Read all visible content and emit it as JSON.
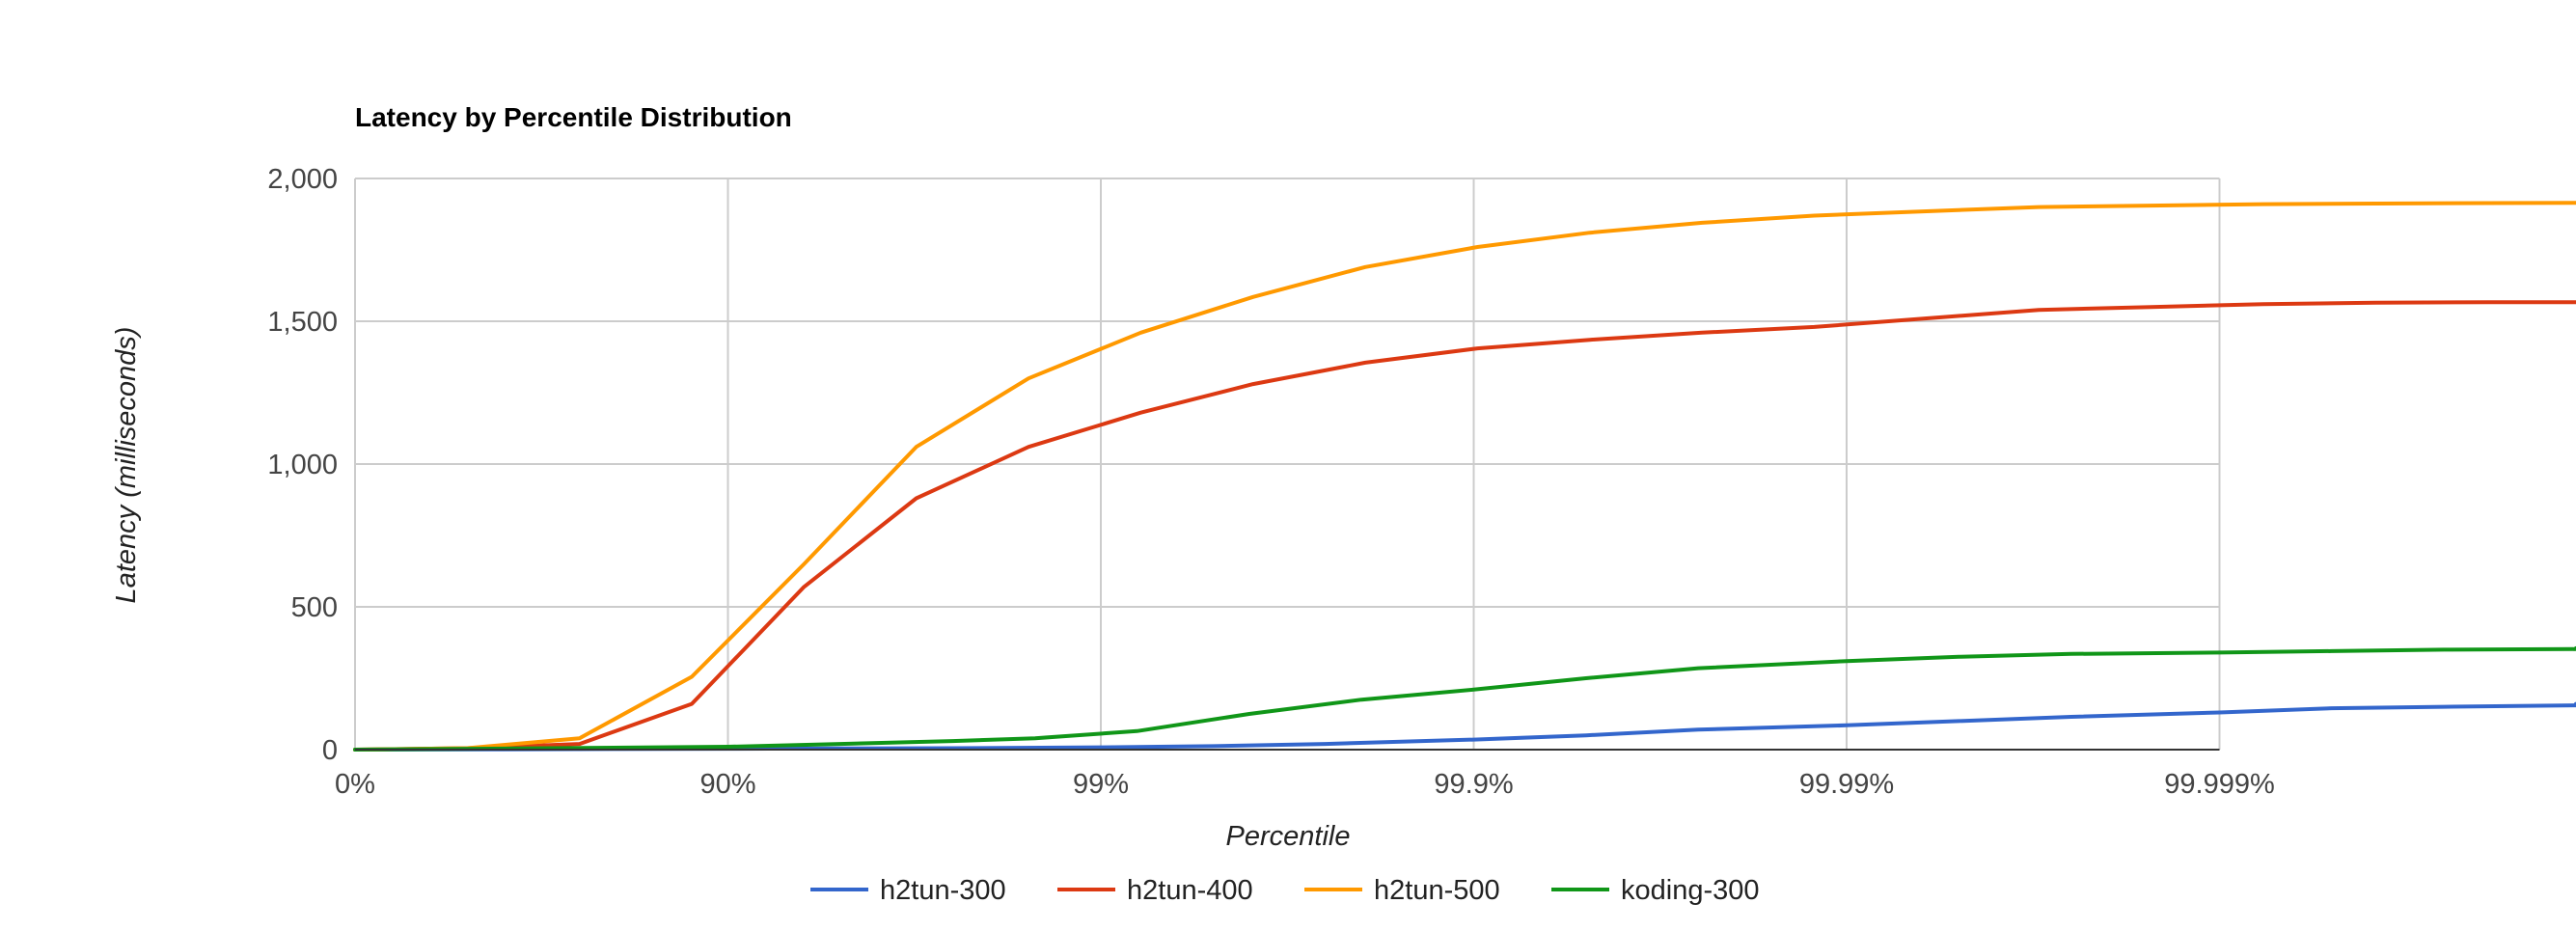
{
  "chart_data": {
    "type": "line",
    "title": "Latency by Percentile Distribution",
    "xlabel": "Percentile",
    "ylabel": "Latency (milliseconds)",
    "x_scale": "log-percentile",
    "x_ticks": [
      "0%",
      "90%",
      "99%",
      "99.9%",
      "99.99%",
      "99.999%"
    ],
    "ylim": [
      0,
      2000
    ],
    "y_ticks": [
      0,
      500,
      1000,
      1500,
      2000
    ],
    "y_tick_labels": [
      "0",
      "500",
      "1,000",
      "1,500",
      "2,000"
    ],
    "grid": true,
    "legend_position": "bottom",
    "series": [
      {
        "name": "h2tun-300",
        "color": "#3366cc",
        "points": [
          [
            0,
            0
          ],
          [
            60,
            1
          ],
          [
            80,
            2
          ],
          [
            90,
            3
          ],
          [
            95,
            4
          ],
          [
            97.5,
            5
          ],
          [
            99,
            8
          ],
          [
            99.5,
            12
          ],
          [
            99.75,
            20
          ],
          [
            99.9,
            35
          ],
          [
            99.95,
            50
          ],
          [
            99.975,
            70
          ],
          [
            99.99,
            85
          ],
          [
            99.995,
            100
          ],
          [
            99.9975,
            115
          ],
          [
            99.999,
            130
          ],
          [
            99.9995,
            145
          ],
          [
            99.99975,
            150
          ],
          [
            99.9999,
            155
          ],
          [
            99.99995,
            160
          ]
        ]
      },
      {
        "name": "h2tun-400",
        "color": "#dc3912",
        "points": [
          [
            0,
            0
          ],
          [
            50,
            5
          ],
          [
            75,
            20
          ],
          [
            87.5,
            160
          ],
          [
            93.75,
            570
          ],
          [
            96.875,
            880
          ],
          [
            98.4375,
            1060
          ],
          [
            99.21875,
            1180
          ],
          [
            99.609375,
            1280
          ],
          [
            99.8046875,
            1355
          ],
          [
            99.90234375,
            1405
          ],
          [
            99.951171875,
            1435
          ],
          [
            99.9755859375,
            1460
          ],
          [
            99.98779296875,
            1480
          ],
          [
            99.993896484375,
            1510
          ],
          [
            99.9969482421875,
            1540
          ],
          [
            99.99847412109375,
            1550
          ],
          [
            99.99923706054688,
            1560
          ],
          [
            99.99961853027344,
            1565
          ],
          [
            99.99980926513672,
            1567
          ],
          [
            99.99990463256836,
            1567
          ]
        ]
      },
      {
        "name": "h2tun-500",
        "color": "#ff9900",
        "points": [
          [
            0,
            0
          ],
          [
            50,
            5
          ],
          [
            75,
            40
          ],
          [
            87.5,
            255
          ],
          [
            93.75,
            650
          ],
          [
            96.875,
            1060
          ],
          [
            98.4375,
            1300
          ],
          [
            99.21875,
            1460
          ],
          [
            99.609375,
            1585
          ],
          [
            99.8046875,
            1690
          ],
          [
            99.90234375,
            1760
          ],
          [
            99.951171875,
            1810
          ],
          [
            99.9755859375,
            1845
          ],
          [
            99.98779296875,
            1870
          ],
          [
            99.993896484375,
            1885
          ],
          [
            99.9969482421875,
            1900
          ],
          [
            99.99847412109375,
            1905
          ],
          [
            99.99923706054688,
            1910
          ],
          [
            99.99961853027344,
            1912
          ],
          [
            99.99980926513672,
            1914
          ],
          [
            99.99990463256836,
            1915
          ]
        ]
      },
      {
        "name": "koding-300",
        "color": "#109618",
        "points": [
          [
            0,
            0
          ],
          [
            70,
            5
          ],
          [
            90,
            10
          ],
          [
            95,
            20
          ],
          [
            97.5,
            30
          ],
          [
            98.5,
            40
          ],
          [
            99.2,
            65
          ],
          [
            99.6,
            125
          ],
          [
            99.8,
            175
          ],
          [
            99.9,
            210
          ],
          [
            99.95,
            250
          ],
          [
            99.975,
            285
          ],
          [
            99.99,
            310
          ],
          [
            99.995,
            325
          ],
          [
            99.9975,
            335
          ],
          [
            99.999,
            340
          ],
          [
            99.9995,
            345
          ],
          [
            99.99975,
            350
          ],
          [
            99.9999,
            352
          ],
          [
            99.99995,
            355
          ]
        ]
      }
    ]
  }
}
